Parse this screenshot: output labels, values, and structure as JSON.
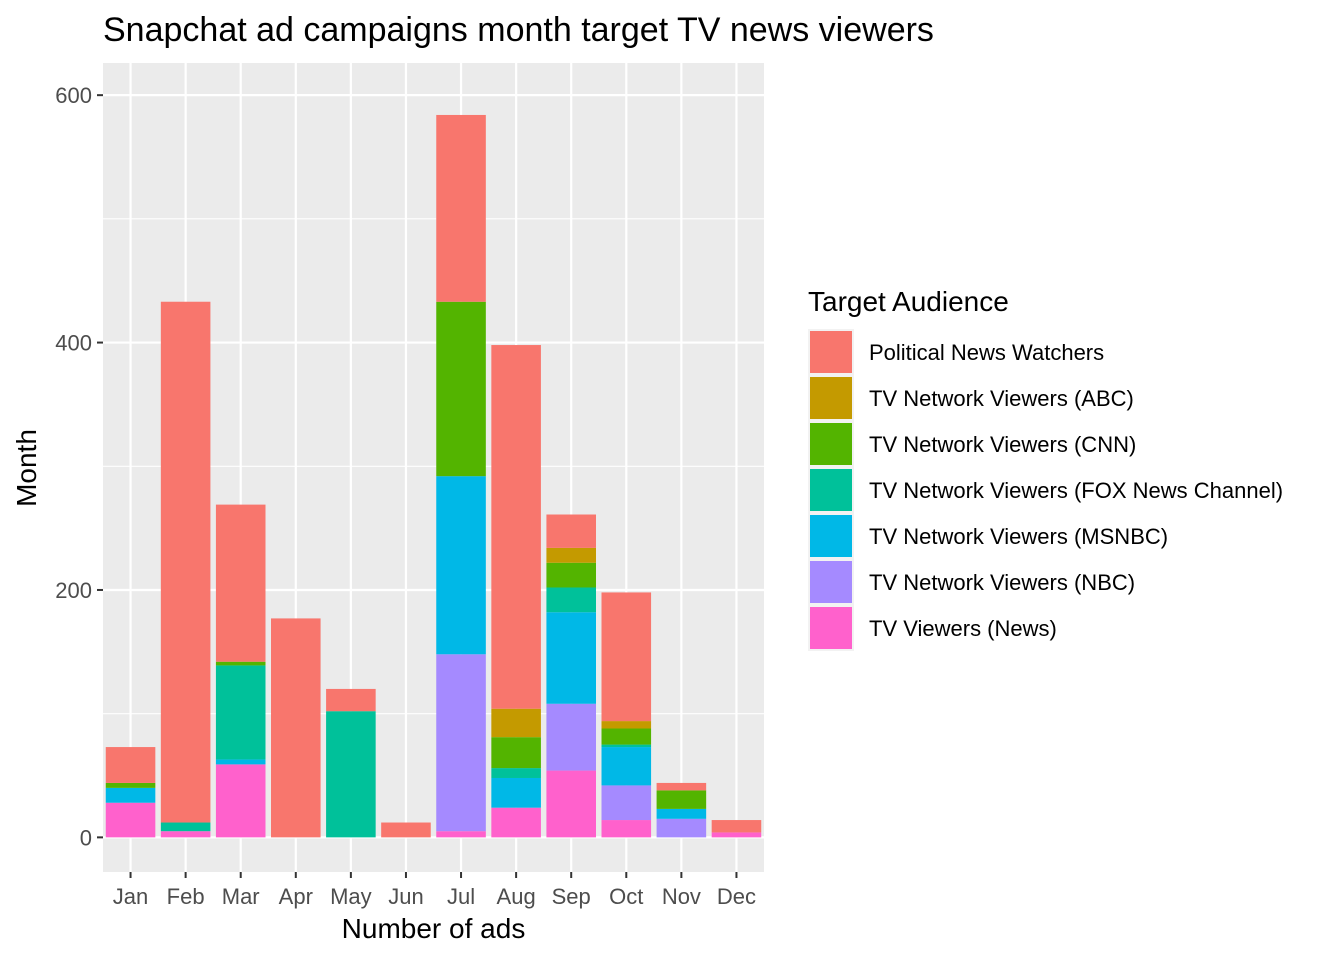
{
  "chart_data": {
    "type": "bar",
    "stacked": true,
    "title": "Snapchat ad campaigns month target TV news viewers",
    "xlabel": "Number of ads",
    "ylabel": "Month",
    "categories": [
      "Jan",
      "Feb",
      "Mar",
      "Apr",
      "May",
      "Jun",
      "Jul",
      "Aug",
      "Sep",
      "Oct",
      "Nov",
      "Dec"
    ],
    "ylim": [
      -28,
      626
    ],
    "yticks": [
      0,
      200,
      400,
      600
    ],
    "grid": true,
    "legend": {
      "title": "Target Audience",
      "placement": "right"
    },
    "series": [
      {
        "name": "TV Viewers (News)",
        "color": "#FF61CC",
        "values": [
          28,
          5,
          59,
          0,
          0,
          0,
          5,
          24,
          54,
          14,
          0,
          4
        ]
      },
      {
        "name": "TV Network Viewers (NBC)",
        "color": "#A58AFF",
        "values": [
          0,
          0,
          0,
          0,
          0,
          0,
          143,
          0,
          54,
          28,
          15,
          0
        ]
      },
      {
        "name": "TV Network Viewers (MSNBC)",
        "color": "#00B8E7",
        "values": [
          12,
          0,
          4,
          0,
          0,
          0,
          144,
          24,
          74,
          31,
          8,
          0
        ]
      },
      {
        "name": "TV Network Viewers (FOX News Channel)",
        "color": "#00C19A",
        "values": [
          0,
          7,
          76,
          0,
          102,
          0,
          0,
          8,
          20,
          2,
          0,
          0
        ]
      },
      {
        "name": "TV Network Viewers (CNN)",
        "color": "#53B400",
        "values": [
          4,
          0,
          3,
          0,
          0,
          0,
          141,
          25,
          20,
          13,
          15,
          0
        ]
      },
      {
        "name": "TV Network Viewers (ABC)",
        "color": "#C49A00",
        "values": [
          0,
          0,
          0,
          0,
          0,
          0,
          0,
          23,
          12,
          6,
          0,
          0
        ]
      },
      {
        "name": "Political News Watchers",
        "color": "#F8766D",
        "values": [
          29,
          421,
          127,
          177,
          18,
          12,
          151,
          294,
          27,
          104,
          6,
          10
        ]
      }
    ],
    "legend_order": [
      "Political News Watchers",
      "TV Network Viewers (ABC)",
      "TV Network Viewers (CNN)",
      "TV Network Viewers (FOX News Channel)",
      "TV Network Viewers (MSNBC)",
      "TV Network Viewers (NBC)",
      "TV Viewers (News)"
    ]
  }
}
